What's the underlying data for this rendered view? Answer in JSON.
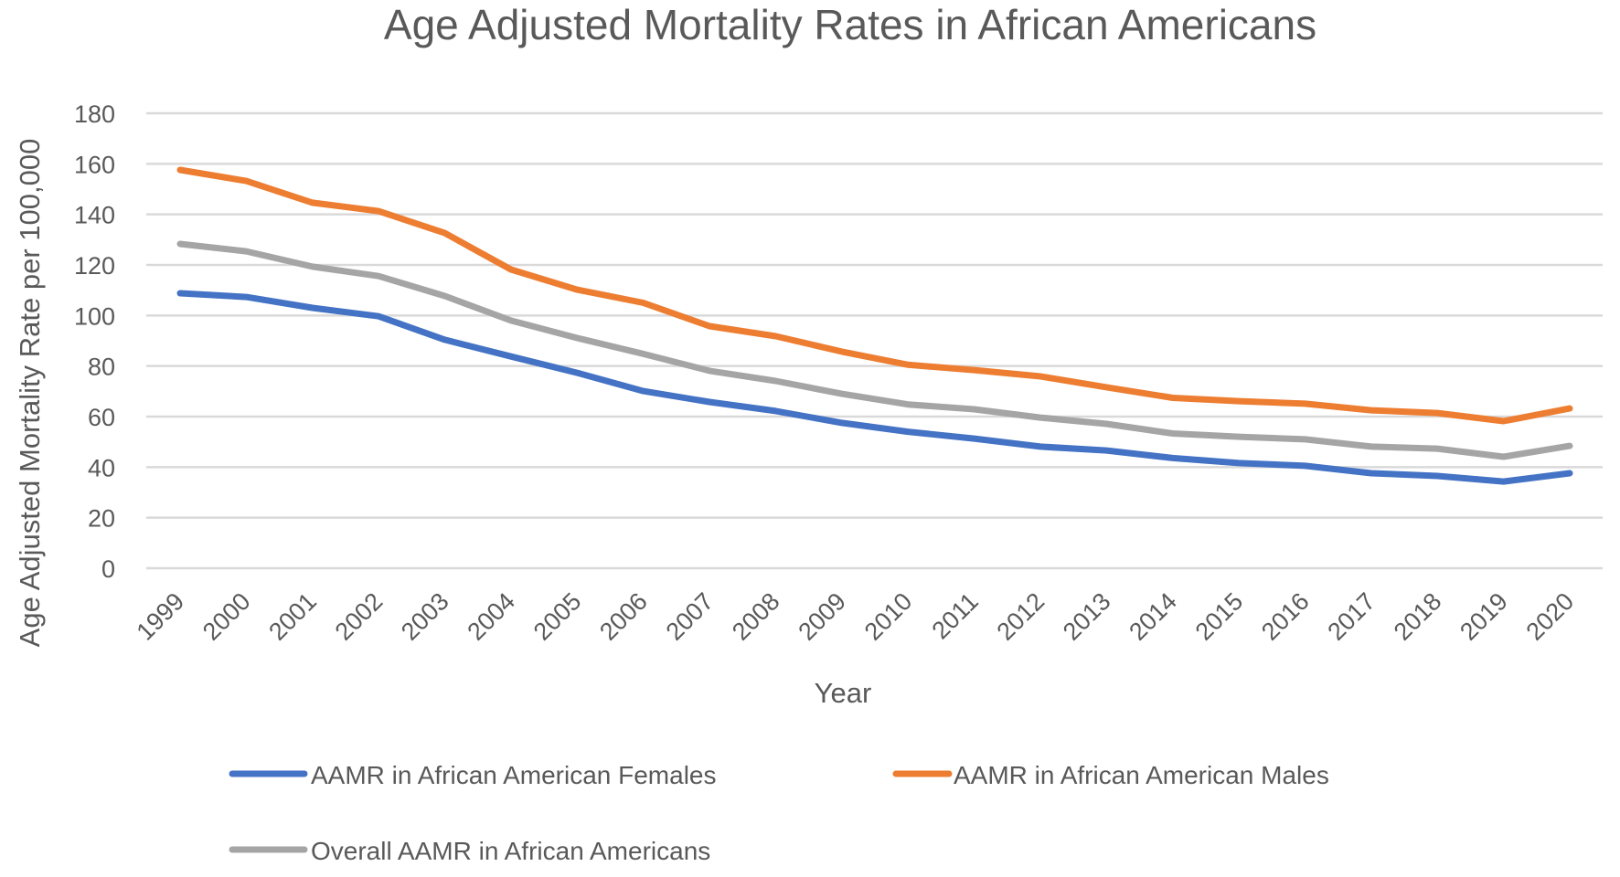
{
  "chart_data": {
    "type": "line",
    "title": "Age Adjusted Mortality Rates in African Americans",
    "xlabel": "Year",
    "ylabel": "Age Adjusted Mortality Rate per 100,000",
    "ylim": [
      0,
      180
    ],
    "yticks": [
      0,
      20,
      40,
      60,
      80,
      100,
      120,
      140,
      160,
      180
    ],
    "grid": true,
    "legend_position": "bottom",
    "categories": [
      "1999",
      "2000",
      "2001",
      "2002",
      "2003",
      "2004",
      "2005",
      "2006",
      "2007",
      "2008",
      "2009",
      "2010",
      "2011",
      "2012",
      "2013",
      "2014",
      "2015",
      "2016",
      "2017",
      "2018",
      "2019",
      "2020"
    ],
    "series": [
      {
        "name": "AAMR in African American Females",
        "color": "#4472c4",
        "values": [
          108.8,
          107.3,
          103.0,
          99.7,
          90.4,
          83.8,
          77.3,
          70.1,
          65.8,
          62.2,
          57.5,
          54.0,
          51.3,
          48.1,
          46.6,
          43.6,
          41.6,
          40.5,
          37.6,
          36.5,
          34.3,
          37.6
        ]
      },
      {
        "name": "AAMR in African American Males",
        "color": "#ed7d31",
        "values": [
          157.6,
          153.2,
          144.6,
          141.3,
          132.6,
          118.2,
          110.2,
          105.0,
          95.8,
          91.8,
          85.7,
          80.5,
          78.4,
          75.9,
          71.6,
          67.4,
          66.1,
          65.1,
          62.5,
          61.4,
          58.2,
          63.2
        ]
      },
      {
        "name": "Overall AAMR in African Americans",
        "color": "#a5a5a5",
        "values": [
          128.3,
          125.4,
          119.3,
          115.6,
          107.7,
          98.0,
          91.1,
          84.8,
          78.1,
          74.1,
          69.0,
          64.8,
          62.9,
          59.6,
          57.1,
          53.3,
          52.0,
          51.0,
          48.1,
          47.3,
          44.1,
          48.4
        ]
      }
    ]
  }
}
